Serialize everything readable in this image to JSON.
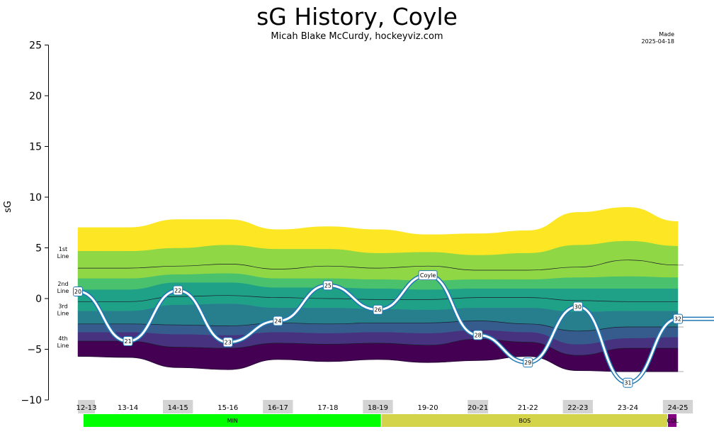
{
  "header": {
    "title": "sG History, Coyle",
    "subtitle": "Micah Blake McCurdy, hockeyviz.com",
    "made_line1": "Made",
    "made_line2": "2025-04-18"
  },
  "chart_data": {
    "type": "area",
    "title": "sG History, Coyle",
    "subtitle": "Micah Blake McCurdy, hockeyviz.com",
    "ylabel": "sG",
    "ylim": [
      -10,
      25
    ],
    "yticks": [
      "25",
      "20",
      "15",
      "10",
      "5",
      "0",
      "−5",
      "−10"
    ],
    "line_labels": [
      {
        "l1": "1st",
        "l2": "Line",
        "y": 4.6
      },
      {
        "l1": "2nd",
        "l2": "Line",
        "y": 1.2
      },
      {
        "l1": "3rd",
        "l2": "Line",
        "y": -1.0
      },
      {
        "l1": "4th",
        "l2": "Line",
        "y": -4.2
      }
    ],
    "seasons": [
      "12-13",
      "13-14",
      "14-15",
      "15-16",
      "16-17",
      "17-18",
      "18-19",
      "19-20",
      "20-21",
      "21-22",
      "22-23",
      "23-24",
      "24-25"
    ],
    "season_widths": [
      0.34,
      0.6,
      0.6,
      0.6,
      0.6,
      0.6,
      0.6,
      0.6,
      0.41,
      0.6,
      0.6,
      0.6,
      0.6
    ],
    "teams": [
      {
        "name": "MIN",
        "seasons": 6.5,
        "color": "#00ff00"
      },
      {
        "name": "BOS",
        "seasons": 6.25,
        "color": "#d4d44a"
      },
      {
        "name": "COL",
        "seasons": 0.2,
        "color": "#800080"
      }
    ],
    "band_x": [
      0,
      1,
      2,
      3,
      4,
      5,
      6,
      7,
      8,
      9,
      10,
      11,
      12
    ],
    "bands": [
      [
        -5.7,
        -5.8,
        -6.8,
        -7.0,
        -6.0,
        -6.2,
        -6.0,
        -6.3,
        -6.1,
        -5.7,
        -7.1,
        -7.2,
        -7.2
      ],
      [
        -4.2,
        -4.2,
        -4.8,
        -4.9,
        -4.4,
        -4.5,
        -4.4,
        -4.6,
        -4.0,
        -4.3,
        -5.6,
        -4.9,
        -4.9
      ],
      [
        -3.3,
        -3.3,
        -3.5,
        -3.6,
        -3.3,
        -3.4,
        -3.3,
        -3.4,
        -3.1,
        -3.3,
        -4.5,
        -3.9,
        -3.8
      ],
      [
        -2.5,
        -2.5,
        -2.6,
        -2.7,
        -2.4,
        -2.5,
        -2.4,
        -2.4,
        -2.2,
        -2.5,
        -3.2,
        -2.8,
        -2.8
      ],
      [
        -1.2,
        -1.2,
        -0.6,
        -0.5,
        -0.9,
        -0.9,
        -1.0,
        -1.1,
        -0.9,
        -0.9,
        -1.3,
        -1.2,
        -1.2
      ],
      [
        -0.3,
        -0.3,
        0.2,
        0.3,
        0.1,
        0.0,
        -0.1,
        -0.1,
        0.1,
        0.1,
        -0.2,
        -0.3,
        -0.3
      ],
      [
        0.9,
        0.9,
        1.6,
        1.6,
        1.1,
        1.1,
        1.0,
        0.9,
        1.0,
        1.0,
        1.0,
        1.0,
        1.0
      ],
      [
        2.0,
        2.0,
        2.4,
        2.5,
        2.0,
        2.0,
        1.9,
        1.8,
        1.9,
        1.9,
        2.1,
        2.2,
        2.1
      ],
      [
        3.0,
        3.0,
        3.2,
        3.4,
        2.9,
        3.2,
        3.0,
        3.2,
        2.8,
        2.8,
        3.1,
        3.8,
        3.3
      ],
      [
        4.7,
        4.7,
        5.0,
        5.3,
        4.9,
        4.9,
        4.5,
        4.6,
        4.3,
        4.5,
        5.3,
        5.7,
        5.2
      ],
      [
        7.0,
        7.0,
        7.8,
        7.8,
        6.8,
        7.1,
        6.8,
        6.3,
        6.4,
        6.7,
        8.5,
        9.0,
        7.6
      ]
    ],
    "band_colors": [
      "#440154",
      "#46327e",
      "#365c8d",
      "#277f8e",
      "#1fa187",
      "#4ac16d",
      "#8fd744",
      "#fde725"
    ],
    "band_pairs": [
      [
        0,
        1
      ],
      [
        1,
        2
      ],
      [
        2,
        3
      ],
      [
        3,
        4
      ],
      [
        4,
        6
      ],
      [
        6,
        7
      ],
      [
        7,
        9
      ],
      [
        9,
        10
      ]
    ],
    "ref_lines": [
      {
        "band": 1,
        "extend": false
      },
      {
        "band": 3,
        "extend": true
      },
      {
        "band": 5,
        "extend": false
      },
      {
        "band": 8,
        "extend": true
      }
    ],
    "series": [
      {
        "name": "Coyle",
        "x": [
          0.25,
          1.25,
          2.25,
          3.25,
          4.25,
          5.25,
          6.25,
          7.25,
          8.25,
          9.25,
          10.25,
          11.25,
          12.25,
          13.25
        ],
        "values": [
          0.7,
          -4.2,
          0.8,
          -4.3,
          -2.2,
          1.3,
          -1.1,
          2.3,
          -3.6,
          -6.3,
          -0.8,
          -8.3,
          -2.0,
          -2.0
        ],
        "labels": [
          "20",
          "21",
          "22",
          "23",
          "24",
          "25",
          "26",
          "Coyle",
          "28",
          "29",
          "30",
          "31",
          "32",
          ""
        ]
      }
    ]
  }
}
